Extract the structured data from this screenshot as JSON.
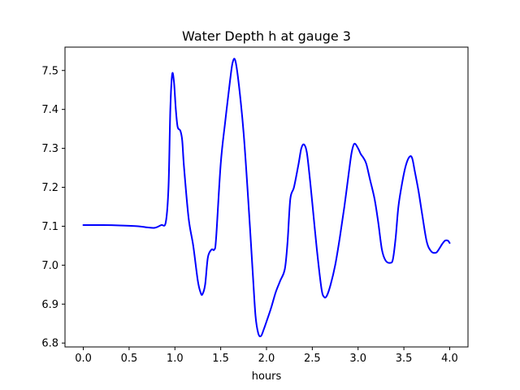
{
  "chart_data": {
    "type": "line",
    "title": "Water Depth h at gauge 3",
    "xlabel": "hours",
    "ylabel": "",
    "xlim": [
      -0.2,
      4.2
    ],
    "ylim": [
      6.79,
      7.56
    ],
    "x_ticks": [
      0.0,
      0.5,
      1.0,
      1.5,
      2.0,
      2.5,
      3.0,
      3.5,
      4.0
    ],
    "x_tick_labels": [
      "0.0",
      "0.5",
      "1.0",
      "1.5",
      "2.0",
      "2.5",
      "3.0",
      "3.5",
      "4.0"
    ],
    "y_ticks": [
      6.8,
      6.9,
      7.0,
      7.1,
      7.2,
      7.3,
      7.4,
      7.5
    ],
    "y_tick_labels": [
      "6.8",
      "6.9",
      "7.0",
      "7.1",
      "7.2",
      "7.3",
      "7.4",
      "7.5"
    ],
    "grid": false,
    "series": [
      {
        "color": "#0000ff",
        "x": [
          0.0,
          0.2,
          0.4,
          0.6,
          0.7,
          0.78,
          0.85,
          0.9,
          0.93,
          0.95,
          0.97,
          0.99,
          1.01,
          1.03,
          1.06,
          1.08,
          1.1,
          1.15,
          1.2,
          1.25,
          1.28,
          1.3,
          1.33,
          1.36,
          1.4,
          1.43,
          1.45,
          1.5,
          1.55,
          1.6,
          1.63,
          1.66,
          1.7,
          1.75,
          1.8,
          1.85,
          1.88,
          1.91,
          1.94,
          1.97,
          2.0,
          2.05,
          2.1,
          2.15,
          2.2,
          2.23,
          2.26,
          2.3,
          2.35,
          2.38,
          2.41,
          2.44,
          2.47,
          2.5,
          2.55,
          2.6,
          2.63,
          2.66,
          2.7,
          2.75,
          2.8,
          2.85,
          2.9,
          2.93,
          2.96,
          3.0,
          3.03,
          3.06,
          3.09,
          3.13,
          3.18,
          3.22,
          3.26,
          3.3,
          3.35,
          3.38,
          3.41,
          3.44,
          3.48,
          3.52,
          3.56,
          3.59,
          3.62,
          3.66,
          3.7,
          3.75,
          3.8,
          3.85,
          3.88,
          3.92,
          3.95,
          3.98,
          4.0
        ],
        "y": [
          7.103,
          7.103,
          7.102,
          7.1,
          7.097,
          7.096,
          7.103,
          7.11,
          7.2,
          7.4,
          7.49,
          7.47,
          7.4,
          7.355,
          7.345,
          7.32,
          7.25,
          7.12,
          7.05,
          6.96,
          6.93,
          6.925,
          6.95,
          7.02,
          7.04,
          7.04,
          7.07,
          7.26,
          7.37,
          7.47,
          7.52,
          7.525,
          7.46,
          7.34,
          7.17,
          6.98,
          6.87,
          6.825,
          6.818,
          6.835,
          6.855,
          6.89,
          6.93,
          6.96,
          6.99,
          7.06,
          7.17,
          7.2,
          7.26,
          7.3,
          7.31,
          7.29,
          7.23,
          7.16,
          7.04,
          6.94,
          6.918,
          6.922,
          6.95,
          7.0,
          7.07,
          7.15,
          7.24,
          7.29,
          7.312,
          7.3,
          7.285,
          7.275,
          7.26,
          7.22,
          7.17,
          7.11,
          7.04,
          7.012,
          7.006,
          7.015,
          7.07,
          7.15,
          7.21,
          7.255,
          7.278,
          7.275,
          7.24,
          7.19,
          7.13,
          7.06,
          7.035,
          7.032,
          7.04,
          7.055,
          7.063,
          7.063,
          7.057
        ]
      }
    ]
  }
}
